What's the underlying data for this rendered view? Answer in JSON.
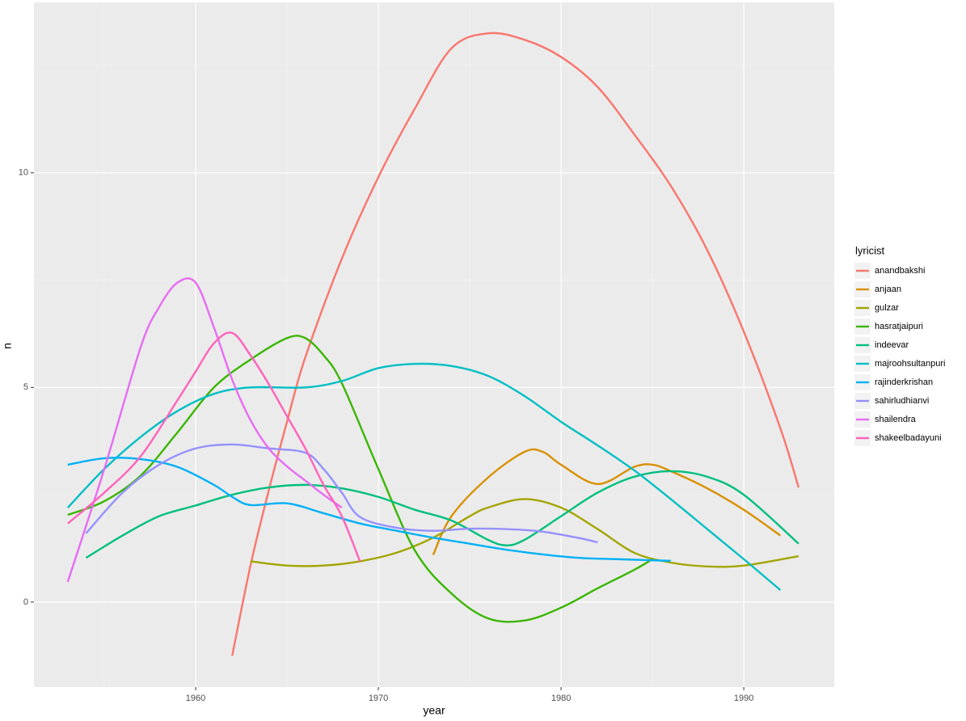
{
  "chart_data": {
    "type": "line",
    "x_label": "year",
    "y_label": "n",
    "legend_title": "lyricist",
    "legend_position": "right",
    "grid": true,
    "xlim": [
      1951.15,
      1994.95
    ],
    "xticks": [
      1960,
      1970,
      1980,
      1990
    ],
    "ylim": [
      -1.98,
      13.97
    ],
    "yticks": [
      0,
      5,
      10
    ],
    "series": [
      {
        "name": "anandbakshi",
        "color": "#F8766D",
        "x": [
          1962,
          1963,
          1964,
          1965,
          1966,
          1968,
          1970,
          1972,
          1974,
          1976,
          1978,
          1980,
          1982,
          1984,
          1986,
          1988,
          1990,
          1992,
          1993
        ],
        "values": [
          -1.25,
          0.85,
          2.6,
          4.2,
          5.7,
          8.0,
          9.9,
          11.5,
          12.9,
          13.25,
          13.1,
          12.7,
          12.0,
          10.9,
          9.7,
          8.2,
          6.3,
          4.05,
          2.67
        ]
      },
      {
        "name": "anjaan",
        "color": "#D89000",
        "x": [
          1973,
          1974,
          1976,
          1978,
          1979,
          1980,
          1982,
          1984,
          1985,
          1986,
          1988,
          1990,
          1992
        ],
        "values": [
          1.1,
          2.0,
          2.9,
          3.5,
          3.5,
          3.2,
          2.75,
          3.15,
          3.2,
          3.05,
          2.65,
          2.15,
          1.55
        ]
      },
      {
        "name": "gulzar",
        "color": "#A3A500",
        "x": [
          1963,
          1965,
          1967,
          1969,
          1971,
          1973,
          1975,
          1976,
          1978,
          1980,
          1982,
          1984,
          1986,
          1988,
          1990,
          1993
        ],
        "values": [
          0.95,
          0.85,
          0.85,
          0.95,
          1.15,
          1.5,
          2.0,
          2.2,
          2.4,
          2.2,
          1.7,
          1.15,
          0.92,
          0.83,
          0.85,
          1.07
        ]
      },
      {
        "name": "hasratjaipuri",
        "color": "#39B600",
        "x": [
          1953,
          1955,
          1957,
          1959,
          1961,
          1963,
          1965,
          1966,
          1967,
          1968,
          1970,
          1972,
          1974,
          1976,
          1978,
          1980,
          1982,
          1984,
          1985
        ],
        "values": [
          2.03,
          2.35,
          2.95,
          3.95,
          5.0,
          5.65,
          6.15,
          6.15,
          5.75,
          5.1,
          3.1,
          1.2,
          0.2,
          -0.38,
          -0.43,
          -0.13,
          0.32,
          0.75,
          1.0
        ]
      },
      {
        "name": "indeevar",
        "color": "#00BF7D",
        "x": [
          1954,
          1956,
          1958,
          1960,
          1962,
          1964,
          1966,
          1968,
          1970,
          1972,
          1974,
          1976,
          1977,
          1978,
          1980,
          1982,
          1984,
          1986,
          1988,
          1990,
          1993
        ],
        "values": [
          1.03,
          1.55,
          2.0,
          2.25,
          2.5,
          2.67,
          2.73,
          2.65,
          2.45,
          2.15,
          1.9,
          1.45,
          1.32,
          1.45,
          2.0,
          2.55,
          2.92,
          3.05,
          2.92,
          2.5,
          1.36
        ]
      },
      {
        "name": "majroohsultanpuri",
        "color": "#00BFC4",
        "x": [
          1953,
          1955,
          1957,
          1959,
          1961,
          1963,
          1966,
          1968,
          1970,
          1972,
          1974,
          1976,
          1978,
          1980,
          1982,
          1984,
          1986,
          1988,
          1990,
          1992
        ],
        "values": [
          2.2,
          3.1,
          3.85,
          4.45,
          4.85,
          5.0,
          5.0,
          5.15,
          5.45,
          5.55,
          5.5,
          5.27,
          4.8,
          4.2,
          3.65,
          3.07,
          2.4,
          1.7,
          1.0,
          0.28
        ]
      },
      {
        "name": "rajinderkrishan",
        "color": "#00B0F6",
        "x": [
          1953,
          1955,
          1957,
          1959,
          1961,
          1962,
          1963,
          1965,
          1967,
          1969,
          1971,
          1973,
          1975,
          1977,
          1979,
          1981,
          1983,
          1986
        ],
        "values": [
          3.2,
          3.35,
          3.33,
          3.15,
          2.73,
          2.45,
          2.26,
          2.3,
          2.07,
          1.83,
          1.66,
          1.5,
          1.36,
          1.22,
          1.11,
          1.03,
          1.0,
          0.96
        ]
      },
      {
        "name": "sahirludhianvi",
        "color": "#9590FF",
        "x": [
          1954,
          1956,
          1958,
          1960,
          1962,
          1964,
          1966,
          1967,
          1968,
          1969,
          1971,
          1973,
          1975,
          1977,
          1979,
          1981,
          1982
        ],
        "values": [
          1.6,
          2.55,
          3.2,
          3.58,
          3.67,
          3.58,
          3.48,
          3.1,
          2.55,
          1.98,
          1.73,
          1.66,
          1.71,
          1.7,
          1.64,
          1.49,
          1.39
        ]
      },
      {
        "name": "shailendra",
        "color": "#E76BF3",
        "x": [
          1953,
          1955,
          1957,
          1958,
          1959,
          1960,
          1961,
          1962,
          1963,
          1964,
          1965,
          1966,
          1967,
          1968
        ],
        "values": [
          0.47,
          3.1,
          5.95,
          6.87,
          7.44,
          7.44,
          6.4,
          5.18,
          4.24,
          3.58,
          3.16,
          2.83,
          2.5,
          2.2
        ]
      },
      {
        "name": "shakeelbadayuni",
        "color": "#FF62BC",
        "x": [
          1953,
          1955,
          1957,
          1959,
          1960,
          1961,
          1962,
          1963,
          1964,
          1965,
          1966,
          1967,
          1968,
          1969
        ],
        "values": [
          1.83,
          2.55,
          3.4,
          4.7,
          5.37,
          6.03,
          6.27,
          5.75,
          5.08,
          4.33,
          3.58,
          2.73,
          2.0,
          0.94
        ]
      }
    ]
  }
}
